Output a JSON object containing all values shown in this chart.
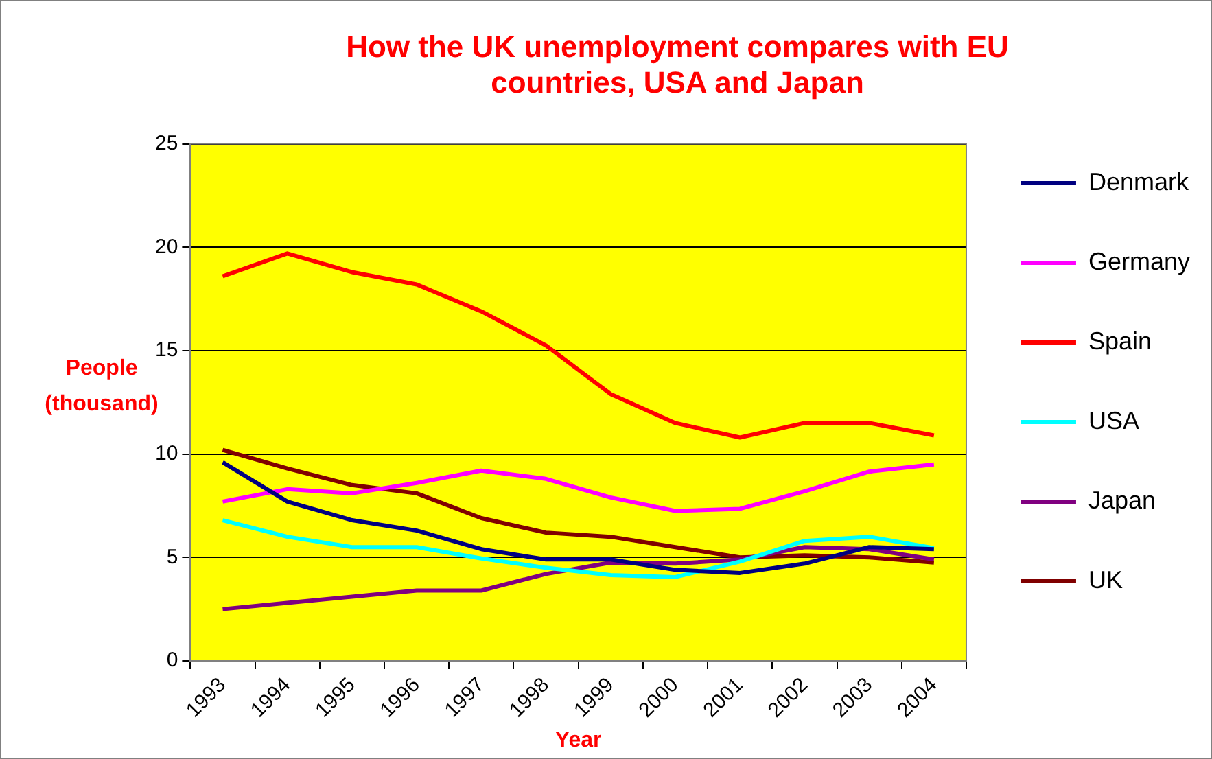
{
  "chart_data": {
    "type": "line",
    "title": "How the UK unemployment compares with EU countries, USA and Japan",
    "xlabel": "Year",
    "ylabel": "People (thousand)",
    "categories": [
      "1993",
      "1994",
      "1995",
      "1996",
      "1997",
      "1998",
      "1999",
      "2000",
      "2001",
      "2002",
      "2003",
      "2004"
    ],
    "ylim": [
      0,
      25
    ],
    "yticks": [
      0,
      5,
      10,
      15,
      20,
      25
    ],
    "grid": "y",
    "legend": "right",
    "marker": "none",
    "line_style": "solid",
    "series": [
      {
        "name": "Denmark",
        "color": "#000080",
        "values": [
          9.6,
          7.7,
          6.8,
          6.3,
          5.4,
          4.9,
          4.9,
          4.4,
          4.25,
          4.7,
          5.5,
          5.4
        ]
      },
      {
        "name": "Germany",
        "color": "#ff00ff",
        "values": [
          7.7,
          8.3,
          8.1,
          8.6,
          9.2,
          8.8,
          7.9,
          7.25,
          7.35,
          8.2,
          9.15,
          9.5
        ]
      },
      {
        "name": "Spain",
        "color": "#ff0000",
        "values": [
          18.6,
          19.7,
          18.8,
          18.2,
          16.9,
          15.25,
          12.9,
          11.5,
          10.8,
          11.5,
          11.5,
          10.9
        ]
      },
      {
        "name": "USA",
        "color": "#00ffff",
        "values": [
          6.8,
          6.0,
          5.5,
          5.5,
          4.95,
          4.5,
          4.15,
          4.05,
          4.8,
          5.8,
          6.0,
          5.45
        ]
      },
      {
        "name": "Japan",
        "color": "#800080",
        "values": [
          2.5,
          2.8,
          3.1,
          3.4,
          3.4,
          4.2,
          4.75,
          4.7,
          4.9,
          5.5,
          5.4,
          4.9
        ]
      },
      {
        "name": "UK",
        "color": "#800000",
        "values": [
          10.2,
          9.3,
          8.5,
          8.1,
          6.9,
          6.2,
          6.0,
          5.5,
          5.0,
          5.1,
          5.0,
          4.75
        ]
      }
    ]
  }
}
